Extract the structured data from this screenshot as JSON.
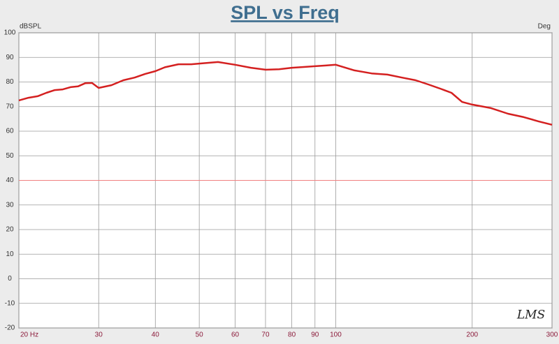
{
  "chart_data": {
    "type": "line",
    "title": "SPL vs Freq",
    "y_label": "dBSPL",
    "y2_label": "Deg",
    "watermark": "LMS",
    "x": [
      20,
      21,
      22,
      23,
      24,
      25,
      26,
      27,
      28,
      29,
      30,
      32,
      34,
      36,
      38,
      40,
      42,
      45,
      48,
      50,
      55,
      60,
      65,
      70,
      75,
      80,
      85,
      90,
      95,
      100,
      110,
      120,
      130,
      140,
      150,
      160,
      170,
      180,
      190,
      200,
      220,
      240,
      260,
      280,
      300
    ],
    "values": [
      72.5,
      73.6,
      74.2,
      75.6,
      76.7,
      77,
      77.9,
      78.2,
      79.5,
      79.6,
      77.6,
      78.7,
      80.7,
      81.8,
      83.3,
      84.4,
      86,
      87.2,
      87.2,
      87.5,
      88.1,
      87,
      85.8,
      85,
      85.2,
      85.8,
      86.1,
      86.4,
      86.7,
      87,
      84.7,
      83.5,
      83,
      81.8,
      80.7,
      79,
      77.3,
      75.6,
      71.9,
      70.8,
      69.4,
      67.1,
      65.7,
      64,
      62.6
    ],
    "color": "#d42020",
    "xlim": [
      20,
      300
    ],
    "x_log": true,
    "xticks": [
      {
        "value": 20,
        "label": "20 Hz"
      },
      30,
      40,
      50,
      60,
      70,
      80,
      90,
      100,
      200,
      300
    ],
    "ylim": [
      -20,
      100
    ],
    "yticks": [
      -20,
      -10,
      0,
      10,
      20,
      30,
      40,
      50,
      60,
      70,
      80,
      90,
      100
    ],
    "grid": true,
    "reference_line": 40,
    "reference_color": "#f08080"
  }
}
